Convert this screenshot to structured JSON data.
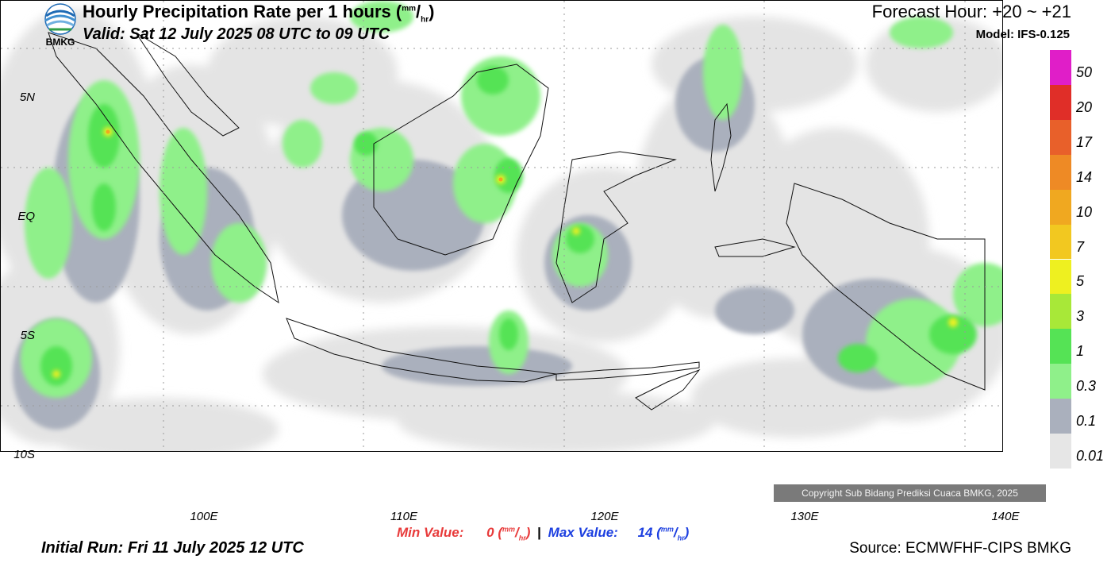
{
  "header": {
    "agency": "BMKG",
    "title": "Hourly Precipitation Rate per 1 hours",
    "unit_num": "mm",
    "unit_den": "hr",
    "valid": "Valid: Sat 12 July 2025 08 UTC to 09 UTC",
    "forecast_hour": "Forecast Hour: +20 ~ +21",
    "model": "Model: IFS-0.125"
  },
  "map": {
    "lat_labels": [
      "5N",
      "EQ",
      "5S",
      "10S"
    ],
    "lon_labels": [
      "100E",
      "110E",
      "120E",
      "130E",
      "140E"
    ],
    "copyright": "Copyright Sub Bidang Prediksi Cuaca BMKG, 2025"
  },
  "stats": {
    "min_label": "Min Value:",
    "min_value": "0",
    "max_label": "Max Value:",
    "max_value": "14",
    "separator": "|"
  },
  "footer": {
    "initial_run": "Initial Run: Fri 11 July 2025 12 UTC",
    "source": "Source: ECMWFHF-CIPS BMKG"
  },
  "legend": {
    "levels": [
      "0.01",
      "0.1",
      "0.3",
      "1",
      "3",
      "5",
      "7",
      "10",
      "14",
      "17",
      "20",
      "50"
    ],
    "colors": [
      "#e6e6e6",
      "#aab0bd",
      "#8ff08a",
      "#55e355",
      "#a8e838",
      "#eef020",
      "#f2c820",
      "#f0a820",
      "#ee8a25",
      "#e8602a",
      "#e02e28",
      "#e01ec8"
    ]
  }
}
